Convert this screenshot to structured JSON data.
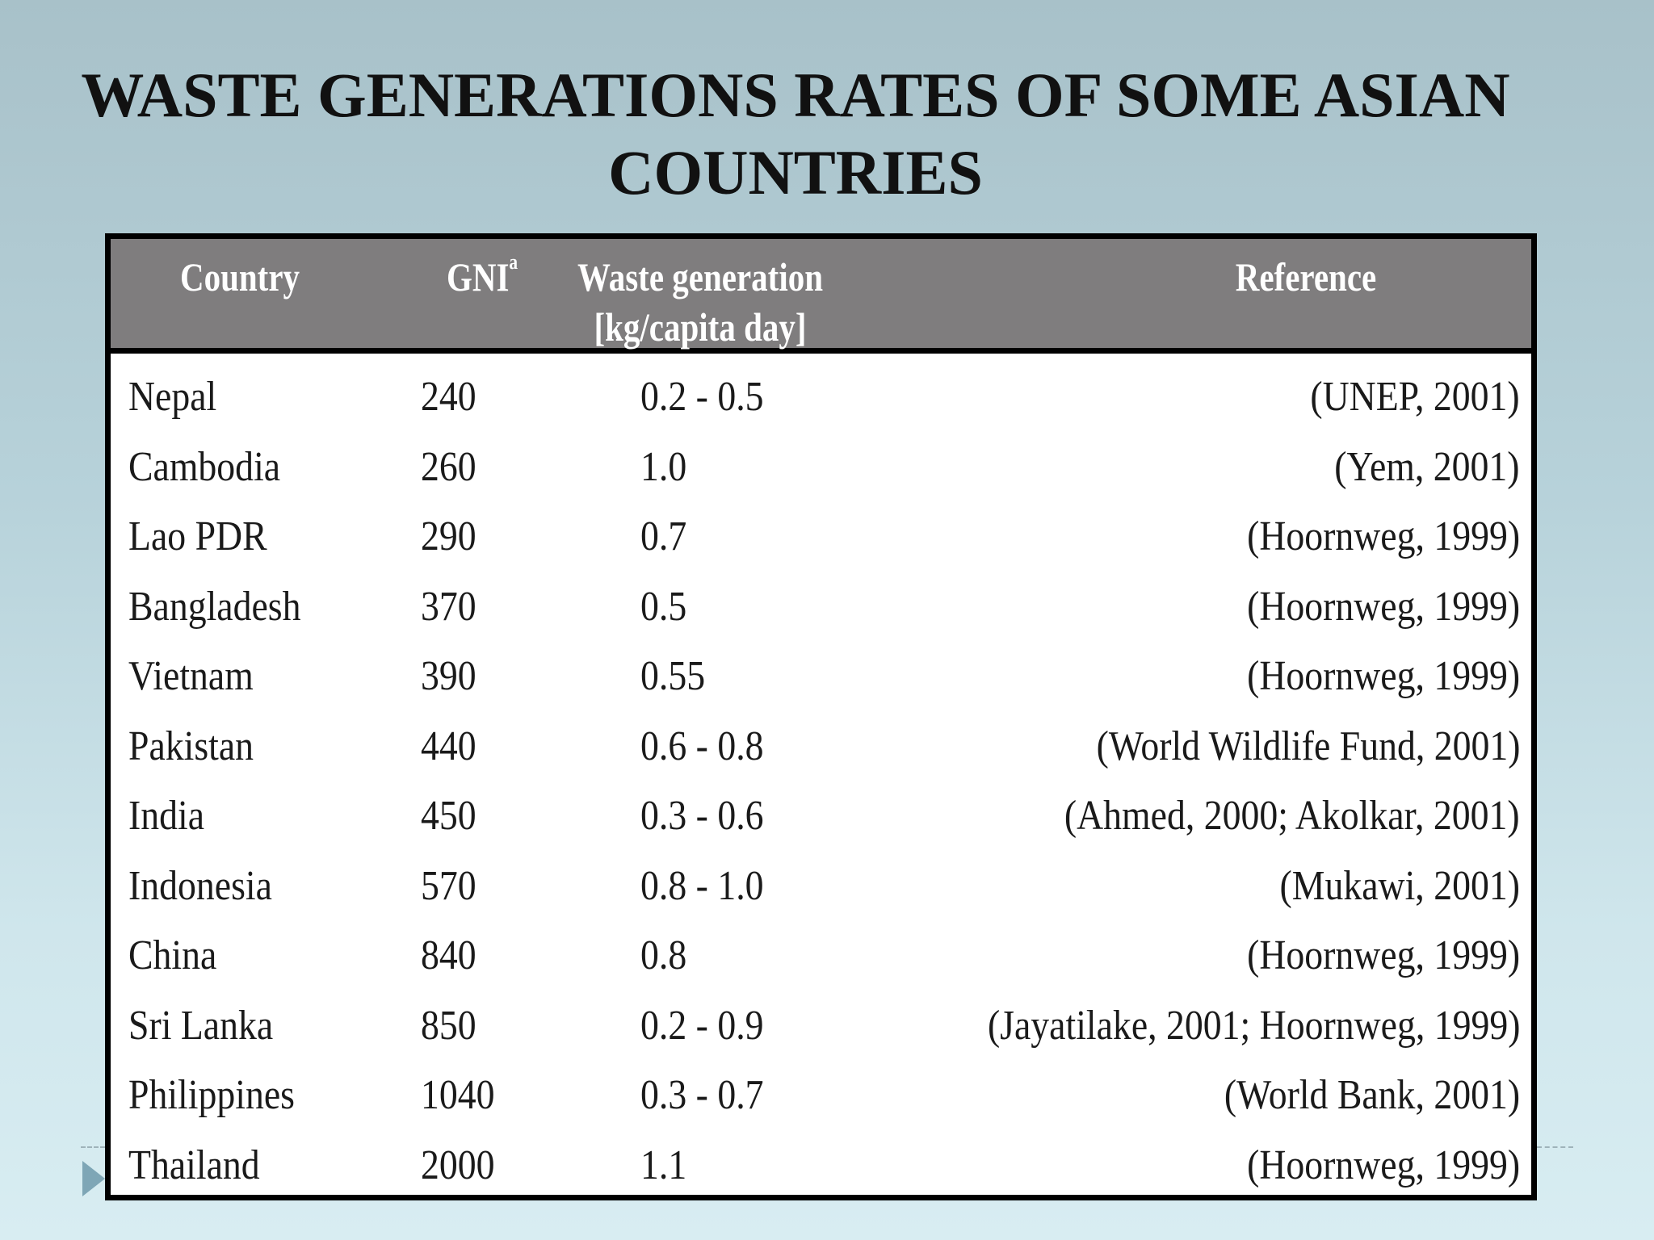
{
  "slide": {
    "title": "WASTE GENERATIONS RATES OF SOME ASIAN COUNTRIES"
  },
  "table": {
    "headers": {
      "country": "Country",
      "gni": "GNI",
      "gni_superscript": "a",
      "waste_line1": "Waste generation",
      "waste_line2": "[kg/capita day]",
      "reference": "Reference"
    },
    "rows": [
      {
        "country": "Nepal",
        "gni": "240",
        "waste": "0.2 - 0.5",
        "reference": "(UNEP, 2001)"
      },
      {
        "country": "Cambodia",
        "gni": "260",
        "waste": "1.0",
        "reference": "(Yem, 2001)"
      },
      {
        "country": "Lao PDR",
        "gni": "290",
        "waste": "0.7",
        "reference": "(Hoornweg, 1999)"
      },
      {
        "country": "Bangladesh",
        "gni": "370",
        "waste": "0.5",
        "reference": "(Hoornweg, 1999)"
      },
      {
        "country": "Vietnam",
        "gni": "390",
        "waste": "0.55",
        "reference": "(Hoornweg, 1999)"
      },
      {
        "country": "Pakistan",
        "gni": "440",
        "waste": "0.6 - 0.8",
        "reference": "(World Wildlife Fund, 2001)"
      },
      {
        "country": "India",
        "gni": "450",
        "waste": "0.3 - 0.6",
        "reference": "(Ahmed, 2000; Akolkar, 2001)"
      },
      {
        "country": "Indonesia",
        "gni": "570",
        "waste": "0.8 - 1.0",
        "reference": "(Mukawi, 2001)"
      },
      {
        "country": "China",
        "gni": "840",
        "waste": "0.8",
        "reference": "(Hoornweg, 1999)"
      },
      {
        "country": "Sri Lanka",
        "gni": "850",
        "waste": "0.2 - 0.9",
        "reference": "(Jayatilake, 2001; Hoornweg, 1999)"
      },
      {
        "country": "Philippines",
        "gni": "1040",
        "waste": "0.3 - 0.7",
        "reference": "(World Bank, 2001)"
      },
      {
        "country": "Thailand",
        "gni": "2000",
        "waste": "1.1",
        "reference": "(Hoornweg, 1999)"
      }
    ]
  },
  "colors": {
    "header_background": "#7f7d7e",
    "header_text": "#ffffff",
    "border": "#000000",
    "nav_arrow": "#7ea6b6"
  },
  "icons": {
    "nav_arrow": "play-triangle-icon"
  }
}
